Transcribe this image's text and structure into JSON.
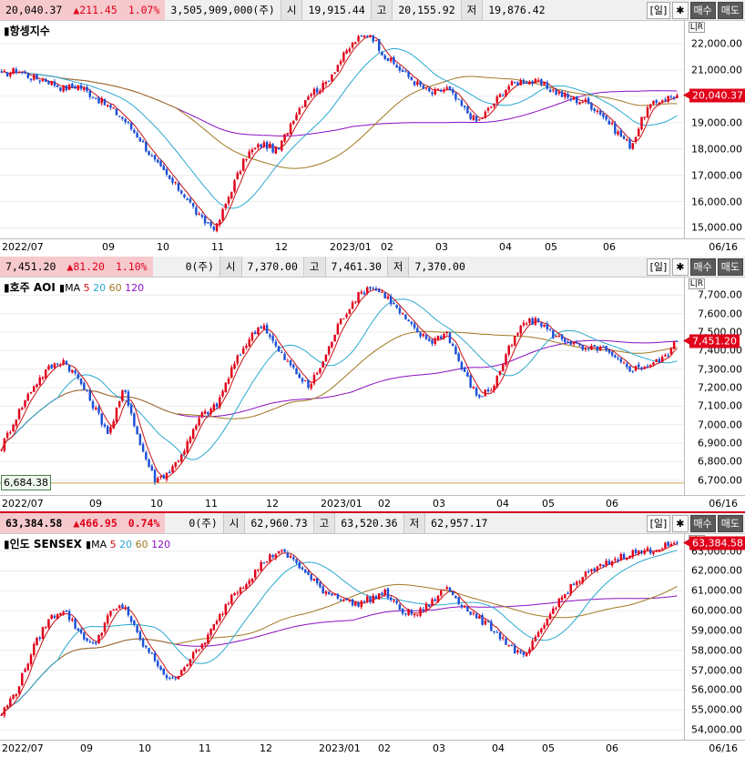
{
  "colors": {
    "up": "#e0001a",
    "down": "#1c4fd6",
    "ma5": "#c81010",
    "ma20": "#2aa8d0",
    "ma60": "#a07820",
    "ma120": "#8a10c0",
    "accent_pink": "#f6c9cd"
  },
  "buttons": {
    "period": "일",
    "settings_icon": "gear-icon",
    "buy": "매수",
    "sell": "매도"
  },
  "lr_label": "L|R",
  "date_label": "06/16",
  "panels": [
    {
      "name": "항셍지수",
      "quote": {
        "last": "20,040.37",
        "change": "▲211.45",
        "pct": "1.07%",
        "volume": "3,505,909,000(주)",
        "open_lbl": "시",
        "open": "19,915.44",
        "high_lbl": "고",
        "high": "20,155.92",
        "low_lbl": "저",
        "low": "19,876.42"
      },
      "ma_legend": null,
      "price_tag": "20,040.37",
      "y_ticks": [
        "22,000.00",
        "21,000.00",
        "20,000.00",
        "19,000.00",
        "18,000.00",
        "17,000.00",
        "16,000.00",
        "15,000.00"
      ],
      "x_ticks": [
        "2022/07",
        "09",
        "10",
        "11",
        "12",
        "2023/01",
        "02",
        "03",
        "04",
        "05",
        "06"
      ],
      "chart_data": {
        "type": "candlestick",
        "ylim": [
          14600,
          22900
        ],
        "start": 20800,
        "lo": 15000,
        "mid_peak": 22500,
        "end": 20040.37,
        "path": [
          20800,
          21000,
          20700,
          20600,
          20300,
          20400,
          20000,
          19600,
          19100,
          18400,
          17500,
          16800,
          16200,
          15300,
          15000,
          16500,
          17800,
          18200,
          17900,
          19200,
          20100,
          20400,
          21300,
          22100,
          22400,
          21500,
          21000,
          20500,
          20100,
          20300,
          19600,
          19000,
          19700,
          20400,
          20600,
          20500,
          20200,
          19900,
          19800,
          19400,
          18700,
          18100,
          19500,
          19900,
          20040
        ]
      }
    },
    {
      "name": "호주 AOI",
      "quote": {
        "last": "7,451.20",
        "change": "▲81.20",
        "pct": "1.10%",
        "volume": "0(주)",
        "open_lbl": "시",
        "open": "7,370.00",
        "high_lbl": "고",
        "high": "7,461.30",
        "low_lbl": "저",
        "low": "7,370.00"
      },
      "ma_legend": {
        "prefix": "MA",
        "v": [
          "5",
          "20",
          "60",
          "120"
        ]
      },
      "price_tag": "7,451.20",
      "left_box": "6,684.38",
      "y_ticks": [
        "7,700.00",
        "7,600.00",
        "7,500.00",
        "7,400.00",
        "7,300.00",
        "7,200.00",
        "7,100.00",
        "7,000.00",
        "6,900.00",
        "6,800.00",
        "6,700.00"
      ],
      "x_ticks": [
        "2022/07",
        "09",
        "10",
        "11",
        "12",
        "2023/01",
        "02",
        "03",
        "04",
        "05",
        "06"
      ],
      "chart_data": {
        "type": "candlestick",
        "ylim": [
          6620,
          7800
        ],
        "path": [
          6880,
          7050,
          7200,
          7300,
          7350,
          7250,
          7100,
          6950,
          7200,
          6900,
          6700,
          6750,
          6880,
          7050,
          7100,
          7300,
          7450,
          7550,
          7400,
          7300,
          7200,
          7350,
          7550,
          7680,
          7750,
          7700,
          7600,
          7500,
          7450,
          7500,
          7300,
          7150,
          7200,
          7400,
          7550,
          7560,
          7480,
          7450,
          7400,
          7420,
          7350,
          7300,
          7320,
          7350,
          7451
        ]
      }
    },
    {
      "name": "인도 SENSEX",
      "quote": {
        "last": "63,384.58",
        "change": "▲466.95",
        "pct": "0.74%",
        "volume": "0(주)",
        "open_lbl": "시",
        "open": "62,960.73",
        "high_lbl": "고",
        "high": "63,520.36",
        "low_lbl": "저",
        "low": "62,957.17"
      },
      "ma_legend": {
        "prefix": "MA",
        "v": [
          "5",
          "20",
          "60",
          "120"
        ]
      },
      "price_tag": "63,384.58",
      "y_ticks": [
        "63,000.00",
        "62,000.00",
        "61,000.00",
        "60,000.00",
        "59,000.00",
        "58,000.00",
        "57,000.00",
        "56,000.00",
        "55,000.00",
        "54,000.00"
      ],
      "x_ticks": [
        "2022/07",
        "09",
        "10",
        "11",
        "12",
        "2023/01",
        "02",
        "03",
        "04",
        "05",
        "06"
      ],
      "chart_data": {
        "type": "candlestick",
        "ylim": [
          53500,
          63900
        ],
        "path": [
          54800,
          56000,
          58000,
          59500,
          60100,
          59000,
          58200,
          59800,
          60300,
          58500,
          57500,
          56400,
          57300,
          58200,
          59400,
          60800,
          61500,
          62400,
          63000,
          62600,
          61700,
          61000,
          60700,
          60300,
          60600,
          60900,
          60000,
          59800,
          60400,
          61200,
          60300,
          59600,
          59100,
          58300,
          57600,
          58800,
          60200,
          61100,
          61800,
          62200,
          62600,
          62900,
          63000,
          63200,
          63384
        ]
      }
    }
  ]
}
